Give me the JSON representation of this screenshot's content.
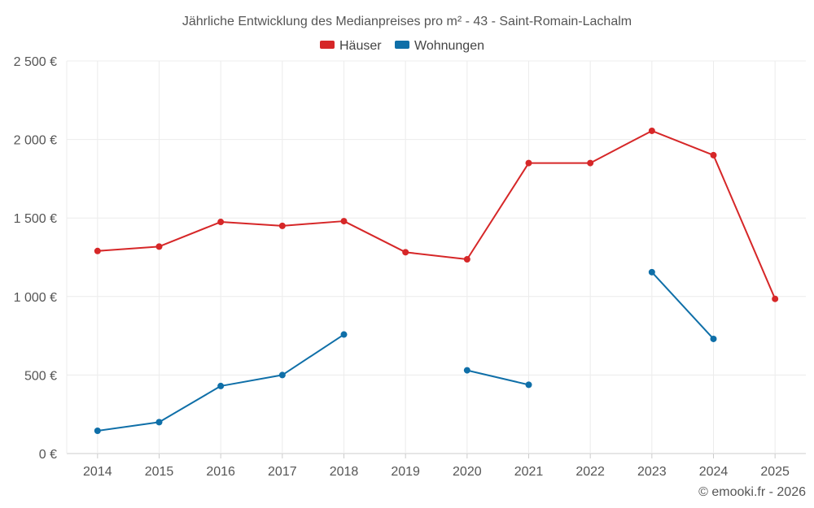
{
  "chart_data": {
    "type": "line",
    "title": "Jährliche Entwicklung des Medianpreises pro m² - 43 - Saint-Romain-Lachalm",
    "categories": [
      "2014",
      "2015",
      "2016",
      "2017",
      "2018",
      "2019",
      "2020",
      "2021",
      "2022",
      "2023",
      "2024",
      "2025"
    ],
    "ylim": [
      0,
      2500
    ],
    "yticks": [
      0,
      500,
      1000,
      1500,
      2000,
      2500
    ],
    "ytick_labels": [
      "0 €",
      "500 €",
      "1 000 €",
      "1 500 €",
      "2 000 €",
      "2 500 €"
    ],
    "xlabel": "",
    "ylabel": "",
    "legend_position": "top-center",
    "series": [
      {
        "name": "Häuser",
        "color": "#d62728",
        "values": [
          1290,
          1318,
          1475,
          1450,
          1480,
          1282,
          1237,
          1850,
          1850,
          2055,
          1900,
          985
        ]
      },
      {
        "name": "Wohnungen",
        "color": "#0f6fa8",
        "values": [
          145,
          200,
          430,
          500,
          758,
          null,
          530,
          438,
          null,
          1155,
          730,
          null
        ]
      }
    ],
    "credit": "© emooki.fr - 2026"
  }
}
